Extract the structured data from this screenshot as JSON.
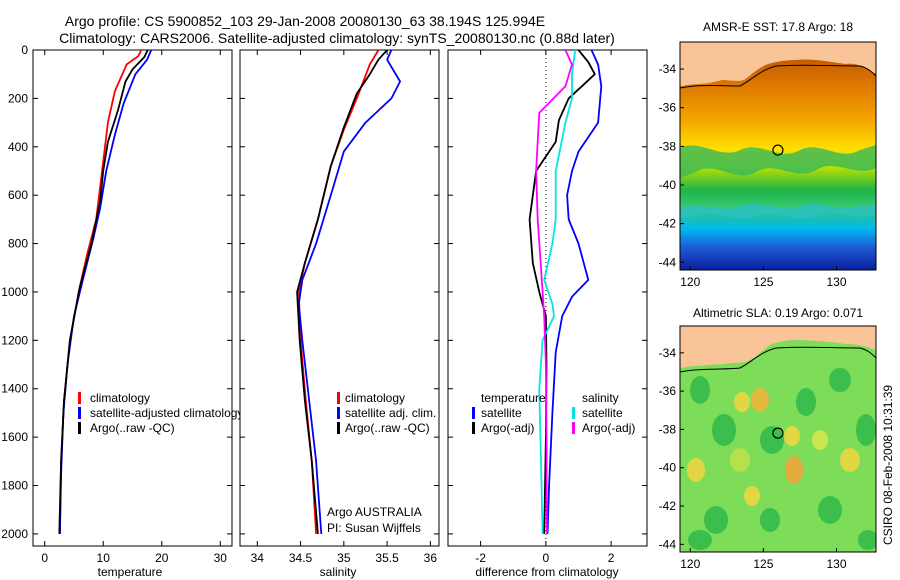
{
  "header": {
    "line1": "Argo profile: CS 5900852_103 29-Jan-2008 20080130_63 38.194S 125.994E",
    "line2": "Climatology: CARS2006. Satellite-adjusted climatology: synTS_20080130.nc (0.88d later)"
  },
  "colors": {
    "climatology": "#ff0000",
    "satellite": "#0000ff",
    "argo": "#000000",
    "sal_sat": "#00e5e5",
    "sal_argo": "#ff00ff"
  },
  "chart_data": [
    {
      "type": "line",
      "panel": "temperature",
      "xlabel": "temperature",
      "ylabel": "",
      "xlim": [
        -2,
        32
      ],
      "ylim": [
        2050,
        0
      ],
      "xticks": [
        0,
        10,
        20,
        30
      ],
      "yticks": [
        0,
        200,
        400,
        600,
        800,
        1000,
        1200,
        1400,
        1600,
        1800,
        2000
      ],
      "legend": [
        "climatology",
        "satellite-adjusted climatology",
        "Argo(..raw -QC)"
      ],
      "series": [
        {
          "name": "climatology",
          "color": "#ff0000",
          "points": [
            [
              16.5,
              0
            ],
            [
              16,
              25
            ],
            [
              14,
              60
            ],
            [
              12,
              170
            ],
            [
              10.8,
              300
            ],
            [
              10.2,
              420
            ],
            [
              9.5,
              560
            ],
            [
              8.8,
              700
            ],
            [
              7.2,
              850
            ],
            [
              5.8,
              1000
            ],
            [
              4.3,
              1200
            ],
            [
              3.3,
              1450
            ],
            [
              2.8,
              1700
            ],
            [
              2.6,
              2000
            ]
          ]
        },
        {
          "name": "satellite-adjusted climatology",
          "color": "#0000ff",
          "points": [
            [
              18.2,
              0
            ],
            [
              17.5,
              40
            ],
            [
              15.5,
              100
            ],
            [
              13.5,
              220
            ],
            [
              12,
              350
            ],
            [
              10.5,
              500
            ],
            [
              9.5,
              650
            ],
            [
              8.3,
              780
            ],
            [
              6.5,
              950
            ],
            [
              5,
              1100
            ],
            [
              3.9,
              1300
            ],
            [
              3.2,
              1500
            ],
            [
              2.8,
              1750
            ],
            [
              2.6,
              2000
            ]
          ]
        },
        {
          "name": "Argo(..raw -QC)",
          "color": "#000000",
          "points": [
            [
              17.6,
              0
            ],
            [
              17,
              30
            ],
            [
              15,
              80
            ],
            [
              13.8,
              130
            ],
            [
              12.5,
              250
            ],
            [
              10.8,
              380
            ],
            [
              10,
              500
            ],
            [
              9.5,
              620
            ],
            [
              8,
              800
            ],
            [
              6,
              980
            ],
            [
              4.3,
              1200
            ],
            [
              3.3,
              1450
            ],
            [
              2.8,
              1700
            ],
            [
              2.5,
              2000
            ]
          ]
        }
      ]
    },
    {
      "type": "line",
      "panel": "salinity",
      "xlabel": "salinity",
      "xlim": [
        33.8,
        36.1
      ],
      "ylim": [
        2050,
        0
      ],
      "xticks": [
        34,
        34.5,
        35,
        35.5,
        36
      ],
      "legend": [
        "climatology",
        "satellite adj. clim.",
        "Argo(..raw -QC)"
      ],
      "annotation": [
        "Argo AUSTRALIA",
        "PI: Susan Wijffels"
      ],
      "series": [
        {
          "name": "climatology",
          "color": "#ff0000",
          "points": [
            [
              35.4,
              0
            ],
            [
              35.3,
              60
            ],
            [
              35.15,
              200
            ],
            [
              35.0,
              330
            ],
            [
              34.85,
              480
            ],
            [
              34.7,
              700
            ],
            [
              34.55,
              880
            ],
            [
              34.48,
              1000
            ],
            [
              34.5,
              1200
            ],
            [
              34.56,
              1450
            ],
            [
              34.63,
              1700
            ],
            [
              34.68,
              2000
            ]
          ]
        },
        {
          "name": "satellite adj. clim.",
          "color": "#0000ff",
          "points": [
            [
              35.55,
              0
            ],
            [
              35.5,
              40
            ],
            [
              35.65,
              130
            ],
            [
              35.55,
              200
            ],
            [
              35.25,
              300
            ],
            [
              35.0,
              420
            ],
            [
              34.85,
              600
            ],
            [
              34.68,
              800
            ],
            [
              34.52,
              950
            ],
            [
              34.48,
              1050
            ],
            [
              34.52,
              1200
            ],
            [
              34.6,
              1450
            ],
            [
              34.68,
              1700
            ],
            [
              34.74,
              2000
            ]
          ]
        },
        {
          "name": "Argo(..raw -QC)",
          "color": "#000000",
          "points": [
            [
              35.5,
              0
            ],
            [
              35.4,
              40
            ],
            [
              35.3,
              100
            ],
            [
              35.15,
              180
            ],
            [
              35.0,
              320
            ],
            [
              34.85,
              480
            ],
            [
              34.7,
              700
            ],
            [
              34.55,
              880
            ],
            [
              34.46,
              1000
            ],
            [
              34.49,
              1200
            ],
            [
              34.55,
              1450
            ],
            [
              34.63,
              1700
            ],
            [
              34.7,
              2000
            ]
          ]
        }
      ]
    },
    {
      "type": "line",
      "panel": "difference",
      "xlabel": "difference from climatology",
      "xlim": [
        -3,
        3.1
      ],
      "ylim": [
        2050,
        0
      ],
      "xticks": [
        -2,
        0,
        2
      ],
      "legend_groups": [
        {
          "title": "temperature",
          "items": [
            "satellite",
            "Argo(-adj)"
          ]
        },
        {
          "title": "salinity",
          "items": [
            "satellite",
            "Argo(-adj)"
          ]
        }
      ],
      "series": [
        {
          "name": "temperature satellite",
          "color": "#0000ff",
          "points": [
            [
              1.4,
              0
            ],
            [
              1.6,
              60
            ],
            [
              1.7,
              150
            ],
            [
              1.6,
              300
            ],
            [
              1.0,
              420
            ],
            [
              0.8,
              500
            ],
            [
              0.65,
              600
            ],
            [
              0.7,
              700
            ],
            [
              1.0,
              800
            ],
            [
              1.3,
              950
            ],
            [
              0.8,
              1020
            ],
            [
              0.5,
              1100
            ],
            [
              0.3,
              1250
            ],
            [
              0.2,
              1500
            ],
            [
              0.1,
              1800
            ],
            [
              0.05,
              2000
            ]
          ]
        },
        {
          "name": "temperature Argo(-adj)",
          "color": "#000000",
          "points": [
            [
              1.0,
              0
            ],
            [
              1.3,
              50
            ],
            [
              1.5,
              100
            ],
            [
              1.1,
              150
            ],
            [
              0.7,
              200
            ],
            [
              0.4,
              290
            ],
            [
              0.3,
              380
            ],
            [
              -0.3,
              500
            ],
            [
              -0.5,
              700
            ],
            [
              -0.4,
              880
            ],
            [
              -0.2,
              1000
            ],
            [
              0,
              1100
            ],
            [
              0.02,
              1300
            ],
            [
              0,
              1600
            ],
            [
              -0.05,
              2000
            ]
          ]
        },
        {
          "name": "salinity satellite",
          "color": "#00e5e5",
          "points": [
            [
              0.9,
              0
            ],
            [
              0.8,
              100
            ],
            [
              0.8,
              200
            ],
            [
              0.6,
              300
            ],
            [
              0.3,
              500
            ],
            [
              0.3,
              700
            ],
            [
              0.2,
              800
            ],
            [
              -0.05,
              950
            ],
            [
              0.2,
              1050
            ],
            [
              0.25,
              1100
            ],
            [
              -0.1,
              1200
            ],
            [
              -0.2,
              1400
            ],
            [
              -0.15,
              1700
            ],
            [
              -0.1,
              2000
            ]
          ]
        },
        {
          "name": "salinity Argo(-adj)",
          "color": "#ff00ff",
          "points": [
            [
              0.6,
              0
            ],
            [
              0.8,
              60
            ],
            [
              0.6,
              150
            ],
            [
              -0.2,
              260
            ],
            [
              -0.25,
              380
            ],
            [
              -0.3,
              500
            ],
            [
              -0.25,
              700
            ],
            [
              -0.15,
              900
            ],
            [
              -0.05,
              1100
            ],
            [
              0,
              1300
            ],
            [
              0.02,
              1600
            ],
            [
              0.03,
              2000
            ]
          ]
        }
      ]
    },
    {
      "type": "heatmap",
      "panel": "sst_map",
      "title": "AMSR-E SST: 17.8 Argo: 18",
      "xlim": [
        119.3,
        132.7
      ],
      "ylim": [
        -44.4,
        -32.6
      ],
      "xticks": [
        120,
        125,
        130
      ],
      "yticks": [
        -34,
        -36,
        -38,
        -40,
        -42,
        -44
      ],
      "marker": {
        "lon": 125.994,
        "lat": -38.194
      }
    },
    {
      "type": "heatmap",
      "panel": "sla_map",
      "title": "Altimetric SLA: 0.19 Argo: 0.071",
      "xlim": [
        119.3,
        132.7
      ],
      "ylim": [
        -44.4,
        -32.6
      ],
      "xticks": [
        120,
        125,
        130
      ],
      "yticks": [
        -34,
        -36,
        -38,
        -40,
        -42,
        -44
      ],
      "marker": {
        "lon": 125.994,
        "lat": -38.194
      }
    }
  ],
  "footer": {
    "credit": "CSIRO 08-Feb-2008 10:31:39"
  }
}
